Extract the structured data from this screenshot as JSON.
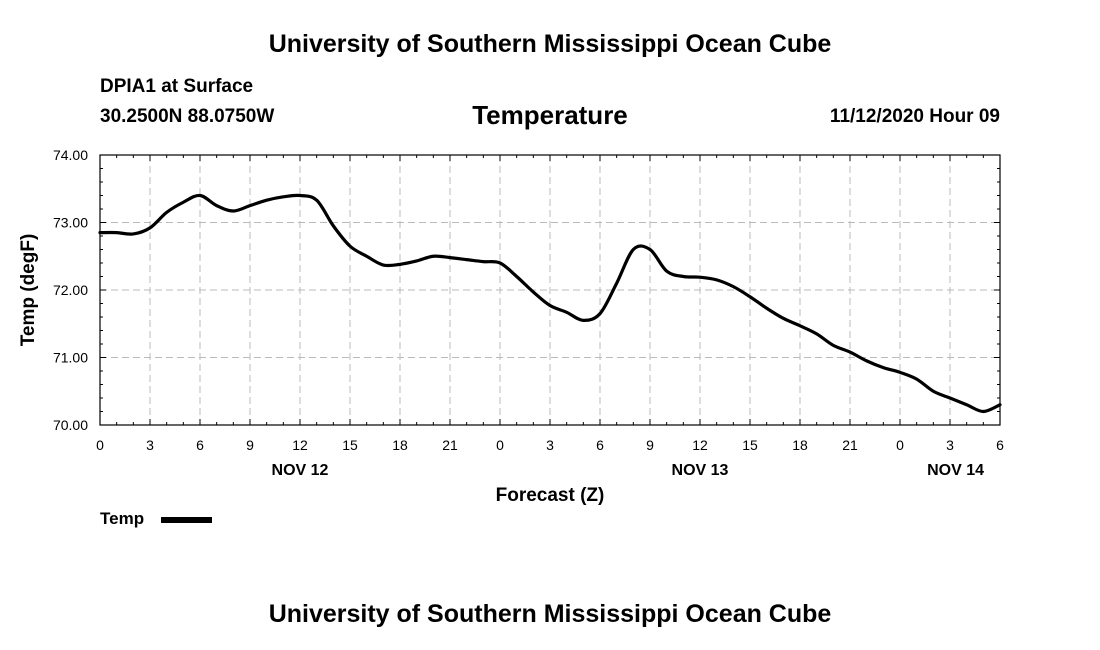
{
  "header": {
    "title": "University of Southern Mississippi Ocean Cube",
    "station": "DPIA1 at Surface",
    "coordinates": "30.2500N 88.0750W",
    "variable": "Temperature",
    "datetime": "11/12/2020 Hour 09"
  },
  "legend": {
    "label": "Temp"
  },
  "footer": {
    "title": "University of Southern Mississippi Ocean Cube"
  },
  "colors": {
    "line": "#000000",
    "grid": "#bbbbbb",
    "axis": "#000000"
  },
  "chart_data": {
    "type": "line",
    "title": "Temperature",
    "xlabel": "Forecast (Z)",
    "ylabel": "Temp (degF)",
    "xlim": [
      0,
      54
    ],
    "ylim": [
      70.0,
      74.0
    ],
    "grid": true,
    "legend_position": "bottom-left",
    "x_ticks": [
      0,
      3,
      6,
      9,
      12,
      15,
      18,
      21,
      24,
      27,
      30,
      33,
      36,
      39,
      42,
      45,
      48,
      51,
      54
    ],
    "x_tick_labels": [
      "0",
      "3",
      "6",
      "9",
      "12",
      "15",
      "18",
      "21",
      "0",
      "3",
      "6",
      "9",
      "12",
      "15",
      "18",
      "21",
      "0",
      "3",
      "6"
    ],
    "y_ticks": [
      70.0,
      71.0,
      72.0,
      73.0,
      74.0
    ],
    "y_tick_labels": [
      "70.00",
      "71.00",
      "72.00",
      "73.00",
      "74.00"
    ],
    "date_labels": [
      {
        "x": 12,
        "label": "NOV 12"
      },
      {
        "x": 36,
        "label": "NOV 13"
      },
      {
        "x": 54,
        "label": "NOV 14"
      }
    ],
    "series": [
      {
        "name": "Temp",
        "x": [
          0,
          1,
          2,
          3,
          4,
          5,
          6,
          7,
          8,
          9,
          10,
          11,
          12,
          13,
          14,
          15,
          16,
          17,
          18,
          19,
          20,
          21,
          22,
          23,
          24,
          25,
          26,
          27,
          28,
          29,
          30,
          31,
          32,
          33,
          34,
          35,
          36,
          37,
          38,
          39,
          40,
          41,
          42,
          43,
          44,
          45,
          46,
          47,
          48,
          49,
          50,
          51,
          52,
          53,
          54
        ],
        "values": [
          72.85,
          72.85,
          72.83,
          72.92,
          73.15,
          73.3,
          73.4,
          73.25,
          73.17,
          73.25,
          73.33,
          73.38,
          73.4,
          73.33,
          72.95,
          72.65,
          72.5,
          72.37,
          72.38,
          72.43,
          72.5,
          72.48,
          72.45,
          72.42,
          72.4,
          72.2,
          71.97,
          71.77,
          71.67,
          71.55,
          71.65,
          72.1,
          72.6,
          72.6,
          72.28,
          72.2,
          72.19,
          72.15,
          72.05,
          71.9,
          71.73,
          71.58,
          71.47,
          71.35,
          71.18,
          71.08,
          70.95,
          70.85,
          70.78,
          70.68,
          70.5,
          70.4,
          70.3,
          70.2,
          70.3
        ]
      }
    ]
  }
}
